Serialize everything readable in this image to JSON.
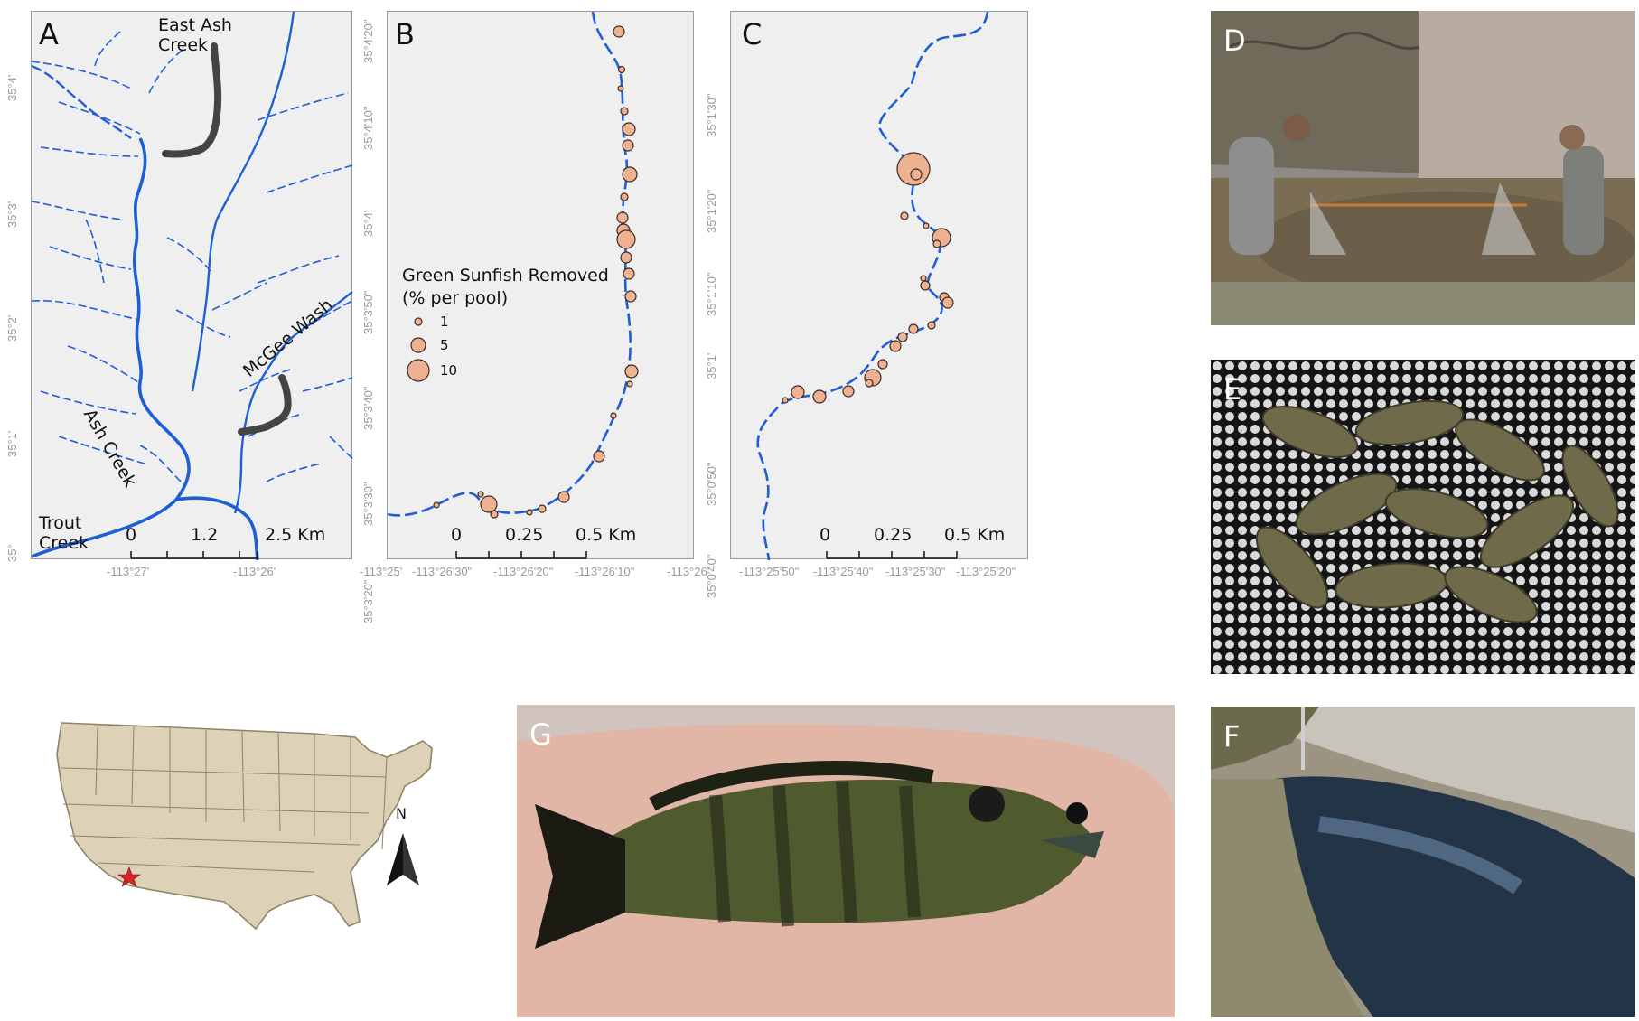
{
  "panels": {
    "a": {
      "label": "A",
      "place_labels": {
        "east_ash_line1": "East Ash",
        "east_ash_line2": "Creek",
        "ash_creek": "Ash Creek",
        "mcgee_wash": "McGee Wash",
        "trout_line1": "Trout",
        "trout_line2": "Creek"
      },
      "lat_ticks": [
        "35°4'",
        "35°3'",
        "35°2'",
        "35°1'",
        "35°"
      ],
      "lon_ticks": [
        "-113°27'",
        "-113°26'",
        "-113°25'"
      ],
      "scale": [
        "0",
        "1.2",
        "2.5 Km"
      ]
    },
    "b": {
      "label": "B",
      "lat_ticks": [
        "35°4'20\"",
        "35°4'10\"",
        "35°4'",
        "35°3'50\"",
        "35°3'40\"",
        "35°3'30\"",
        "35°3'20\""
      ],
      "lon_ticks": [
        "-113°26'30\"",
        "-113°26'20\"",
        "-113°26'10\"",
        "-113°26'"
      ],
      "scale": [
        "0",
        "0.25",
        "0.5 Km"
      ],
      "legend": {
        "title_line1": "Green Sunfish Removed",
        "title_line2": "(% per pool)",
        "values": [
          "1",
          "5",
          "10"
        ]
      }
    },
    "c": {
      "label": "C",
      "lat_ticks": [
        "35°1'30\"",
        "35°1'20\"",
        "35°1'10\"",
        "35°1'",
        "35°0'50\"",
        "35°0'40\""
      ],
      "lon_ticks": [
        "-113°25'50\"",
        "-113°25'40\"",
        "-113°25'30\"",
        "-113°25'20\""
      ],
      "scale": [
        "0",
        "0.25",
        "0.5 Km"
      ]
    },
    "d": {
      "label": "D"
    },
    "e": {
      "label": "E"
    },
    "f": {
      "label": "F"
    },
    "g": {
      "label": "G"
    },
    "inset": {
      "north_label": "N"
    }
  },
  "colors": {
    "stream": "#1f5fd6",
    "pool_fill": "#eeb293",
    "pool_stroke": "#3a2a24",
    "survey_reach": "#444444",
    "us_fill": "#ddd2b8",
    "us_border": "#8f8466",
    "site_star": "#d9262a"
  }
}
